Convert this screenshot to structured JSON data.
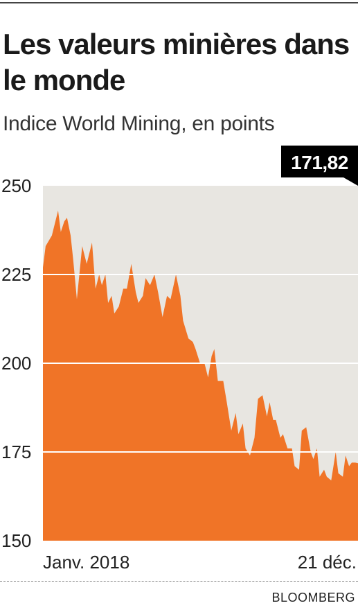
{
  "header": {
    "title": "Les valeurs minières dans le monde",
    "subtitle": "Indice World Mining, en points"
  },
  "source": "BLOOMBERG",
  "colors": {
    "area": "#f07427",
    "plot_background": "#e8e6e1",
    "gridline": "#ffffff",
    "callout_background": "#000000",
    "callout_text": "#ffffff"
  },
  "chart_data": {
    "type": "area",
    "title": "Les valeurs minières dans le monde",
    "subtitle": "Indice World Mining, en points",
    "ylim": [
      150,
      250
    ],
    "yticks": [
      "250",
      "225",
      "200",
      "175",
      "150"
    ],
    "xtick_labels": [
      "Janv. 2018",
      "21 déc."
    ],
    "x_range": [
      "2018-01-02",
      "2018-12-21"
    ],
    "grid": true,
    "last_value_label": "171,82",
    "series": [
      {
        "x": [
          "2018-01-02",
          "2018-01-05",
          "2018-01-12",
          "2018-01-19",
          "2018-01-22",
          "2018-01-26",
          "2018-01-29",
          "2018-02-02",
          "2018-02-05",
          "2018-02-09",
          "2018-02-15",
          "2018-02-20",
          "2018-02-26",
          "2018-03-02",
          "2018-03-06",
          "2018-03-09",
          "2018-03-13",
          "2018-03-16",
          "2018-03-20",
          "2018-03-23",
          "2018-03-28",
          "2018-04-02",
          "2018-04-06",
          "2018-04-11",
          "2018-04-16",
          "2018-04-19",
          "2018-04-24",
          "2018-04-27",
          "2018-05-02",
          "2018-05-07",
          "2018-05-11",
          "2018-05-16",
          "2018-05-21",
          "2018-05-25",
          "2018-05-31",
          "2018-06-05",
          "2018-06-08",
          "2018-06-14",
          "2018-06-19",
          "2018-06-22",
          "2018-06-27",
          "2018-07-02",
          "2018-07-06",
          "2018-07-10",
          "2018-07-13",
          "2018-07-17",
          "2018-07-23",
          "2018-07-27",
          "2018-08-01",
          "2018-08-06",
          "2018-08-09",
          "2018-08-14",
          "2018-08-17",
          "2018-08-22",
          "2018-08-27",
          "2018-08-31",
          "2018-09-05",
          "2018-09-10",
          "2018-09-13",
          "2018-09-17",
          "2018-09-20",
          "2018-09-25",
          "2018-09-28",
          "2018-10-03",
          "2018-10-08",
          "2018-10-11",
          "2018-10-16",
          "2018-10-19",
          "2018-10-24",
          "2018-10-29",
          "2018-11-01",
          "2018-11-05",
          "2018-11-08",
          "2018-11-13",
          "2018-11-16",
          "2018-11-21",
          "2018-11-26",
          "2018-11-29",
          "2018-12-04",
          "2018-12-07",
          "2018-12-11",
          "2018-12-14",
          "2018-12-18",
          "2018-12-21"
        ],
        "values": [
          227,
          233,
          236,
          243,
          237,
          240,
          241,
          236,
          229,
          218,
          233,
          228,
          234,
          221,
          225,
          222,
          225,
          217,
          219,
          214,
          216,
          221,
          221,
          228,
          220,
          217,
          219,
          224,
          222,
          225,
          220,
          213,
          219,
          218,
          225,
          219,
          212,
          207,
          206,
          204,
          200,
          200,
          196,
          202,
          204,
          195,
          195,
          189,
          181,
          186,
          180,
          183,
          176,
          174,
          179,
          190,
          191,
          185,
          189,
          184,
          184,
          179,
          180,
          176,
          176,
          171,
          170,
          181,
          182,
          175,
          173,
          176,
          168,
          170,
          168,
          167,
          175,
          169,
          168,
          174,
          171,
          172,
          172,
          171.82
        ]
      }
    ]
  }
}
